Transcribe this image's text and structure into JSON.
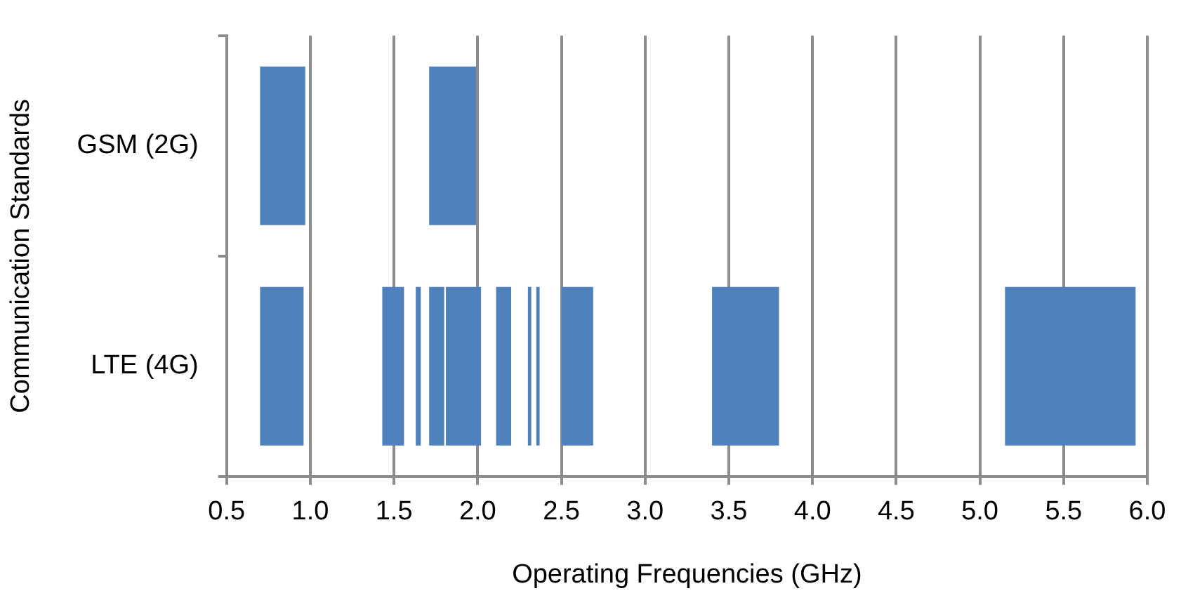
{
  "chart_data": {
    "type": "bar",
    "orientation": "horizontal",
    "xlabel": "Operating Frequencies (GHz)",
    "ylabel": "Communication Standards",
    "categories": [
      "GSM (2G)",
      "LTE (4G)"
    ],
    "series": [
      {
        "color": "#4f81bd",
        "base": [
          0.7,
          0.7
        ],
        "values": [
          0.27,
          0.26
        ]
      },
      {
        "color": "#4f81bd",
        "base": [
          1.71,
          1.43
        ],
        "values": [
          0.28,
          0.13
        ]
      },
      {
        "color": "#4f81bd",
        "base": [
          null,
          1.63
        ],
        "values": [
          null,
          0.03
        ]
      },
      {
        "color": "#4f81bd",
        "base": [
          null,
          1.71
        ],
        "values": [
          null,
          0.09
        ]
      },
      {
        "color": "#4f81bd",
        "base": [
          null,
          1.81
        ],
        "values": [
          null,
          0.21
        ]
      },
      {
        "color": "#4f81bd",
        "base": [
          null,
          2.11
        ],
        "values": [
          null,
          0.09
        ]
      },
      {
        "color": "#4f81bd",
        "base": [
          null,
          2.3
        ],
        "values": [
          null,
          0.02
        ]
      },
      {
        "color": "#4f81bd",
        "base": [
          null,
          2.35
        ],
        "values": [
          null,
          0.02
        ]
      },
      {
        "color": "#4f81bd",
        "base": [
          null,
          2.5
        ],
        "values": [
          null,
          0.19
        ]
      },
      {
        "color": "#4f81bd",
        "base": [
          null,
          3.4
        ],
        "values": [
          null,
          0.4
        ]
      },
      {
        "color": "#4f81bd",
        "base": [
          null,
          5.15
        ],
        "values": [
          null,
          0.78
        ]
      }
    ],
    "xlim": [
      0.5,
      6.0
    ],
    "xticks": [
      {
        "value": 0.5,
        "label": "0.5"
      },
      {
        "value": 1,
        "label": "1.0"
      },
      {
        "value": 1.5,
        "label": "1.5"
      },
      {
        "value": 2,
        "label": "2.0"
      },
      {
        "value": 2.5,
        "label": "2.5"
      },
      {
        "value": 3,
        "label": "3.0"
      },
      {
        "value": 3.5,
        "label": "3.5"
      },
      {
        "value": 4,
        "label": "4.0"
      },
      {
        "value": 4.5,
        "label": "4.5"
      },
      {
        "value": 5,
        "label": "5.0"
      },
      {
        "value": 5.5,
        "label": "5.5"
      },
      {
        "value": 6,
        "label": "6.0"
      }
    ],
    "grid": "x",
    "legend": false
  }
}
